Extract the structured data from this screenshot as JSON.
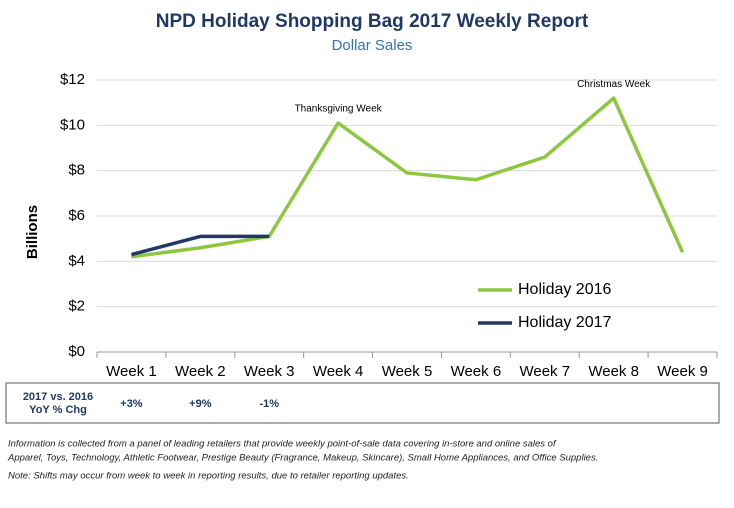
{
  "chart_data": {
    "type": "line",
    "title": "NPD Holiday Shopping Bag 2017 Weekly Report",
    "subtitle": "Dollar Sales",
    "y_label": "Billions",
    "categories": [
      "Week 1",
      "Week 2",
      "Week 3",
      "Week 4",
      "Week 5",
      "Week 6",
      "Week 7",
      "Week 8",
      "Week 9"
    ],
    "series": [
      {
        "name": "Holiday 2016",
        "color": "#8dc63f",
        "values": [
          4.2,
          4.6,
          5.1,
          10.1,
          7.9,
          7.6,
          8.6,
          11.2,
          4.4
        ]
      },
      {
        "name": "Holiday 2017",
        "color": "#1f3864",
        "values": [
          4.3,
          5.1,
          5.1,
          null,
          null,
          null,
          null,
          null,
          null
        ]
      }
    ],
    "ylim": [
      0,
      12
    ],
    "yticks": [
      {
        "value": 0,
        "label": "$0"
      },
      {
        "value": 2,
        "label": "$2"
      },
      {
        "value": 4,
        "label": "$4"
      },
      {
        "value": 6,
        "label": "$6"
      },
      {
        "value": 8,
        "label": "$8"
      },
      {
        "value": 10,
        "label": "$10"
      },
      {
        "value": 12,
        "label": "$12"
      }
    ],
    "grid": true,
    "legend": "lower right",
    "annotations": [
      {
        "text": "Thanksgiving Week",
        "category": 3
      },
      {
        "text": "Christmas Week",
        "category": 7
      }
    ],
    "yoy_row": {
      "label": [
        "2017 vs. 2016",
        "YoY % Chg"
      ],
      "values": [
        "+3%",
        "+9%",
        "-1%"
      ]
    },
    "footnotes": [
      "Information is collected from a panel of leading retailers that provide weekly point-of-sale data covering in-store and online sales of",
      "Apparel, Toys, Technology, Athletic Footwear, Prestige Beauty (Fragrance, Makeup, Skincare), Small Home Appliances, and Office Supplies.",
      "Note: Shifts may occur from week to week in reporting results, due to retailer reporting updates."
    ]
  }
}
